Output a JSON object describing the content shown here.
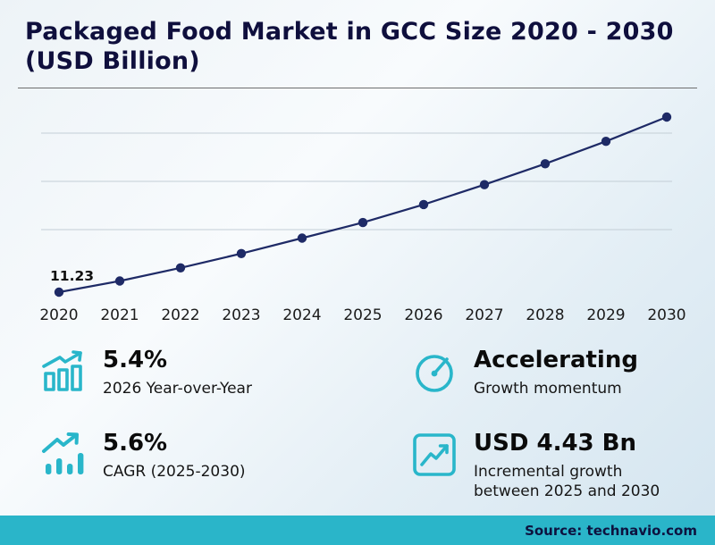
{
  "header": {
    "title": "Packaged Food Market in GCC Size 2020 - 2030 (USD Billion)"
  },
  "chart_data": {
    "type": "line",
    "title": "Packaged Food Market in GCC Size 2020 - 2030 (USD Billion)",
    "x": [
      "2020",
      "2021",
      "2022",
      "2023",
      "2024",
      "2025",
      "2026",
      "2027",
      "2028",
      "2029",
      "2030"
    ],
    "values": [
      11.23,
      11.7,
      12.25,
      12.85,
      13.5,
      14.15,
      14.91,
      15.74,
      16.62,
      17.56,
      18.58
    ],
    "first_value_label": "11.23",
    "ylim": [
      11,
      19
    ],
    "grid": true,
    "legend": "none",
    "xlabel": "",
    "ylabel": "USD Billion"
  },
  "stats": [
    {
      "icon": "bar-chart-growth-icon",
      "value": "5.4%",
      "label": "2026 Year-over-Year"
    },
    {
      "icon": "gauge-icon",
      "value": "Accelerating",
      "label": "Growth momentum"
    },
    {
      "icon": "trend-up-bars-icon",
      "value": "5.6%",
      "label": "CAGR (2025-2030)"
    },
    {
      "icon": "chart-box-icon",
      "value": "USD 4.43 Bn",
      "label": "Incremental growth between 2025 and 2030"
    }
  ],
  "footer": {
    "source_label": "Source: technavio.com"
  },
  "colors": {
    "accent": "#29b6ca",
    "line": "#1e2a66",
    "footer_bg": "#2ab5c9",
    "title_text": "#0f0f3d"
  }
}
